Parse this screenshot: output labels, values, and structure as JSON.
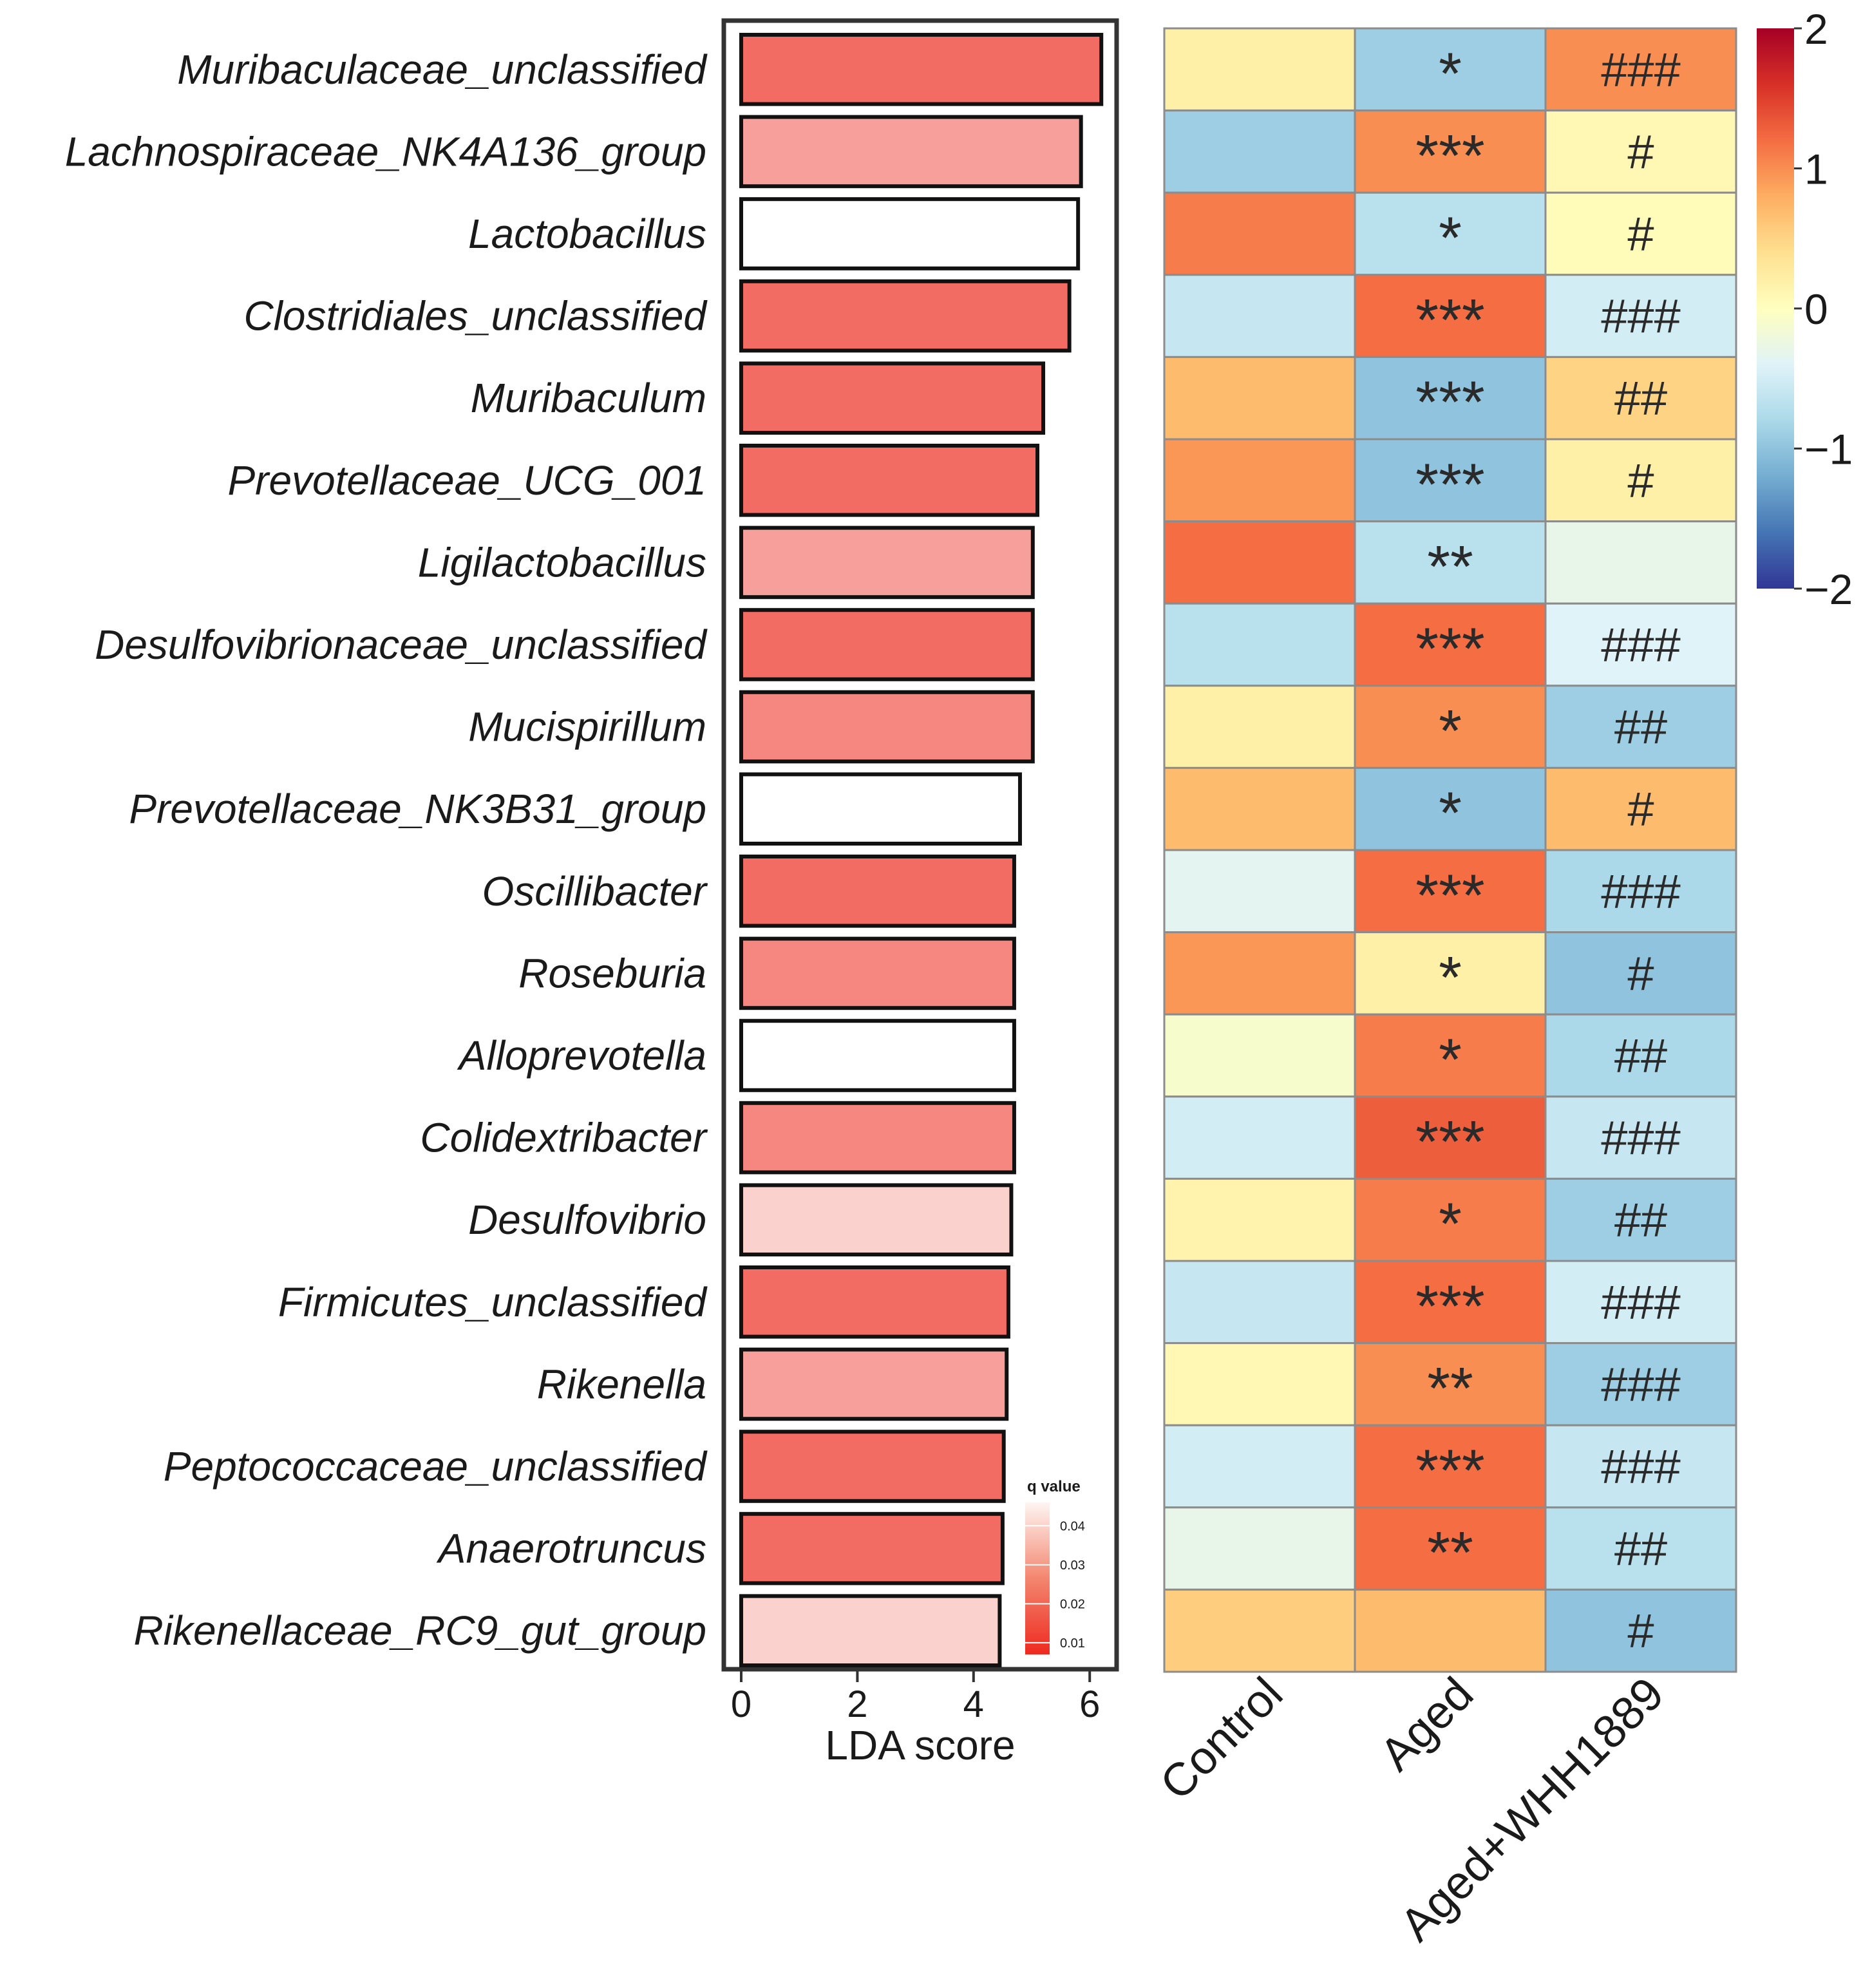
{
  "chart_data": [
    {
      "type": "bar",
      "orientation": "horizontal",
      "title": "",
      "xlabel": "LDA score",
      "ylabel": "",
      "xlim": [
        0,
        6.5
      ],
      "x_ticks": [
        "0",
        "2",
        "4",
        "6"
      ],
      "categories": [
        "Muribaculaceae_unclassified",
        "Lachnospiraceae_NK4A136_group",
        "Lactobacillus",
        "Clostridiales_unclassified",
        "Muribaculum",
        "Prevotellaceae_UCG_001",
        "Ligilactobacillus",
        "Desulfovibrionaceae_unclassified",
        "Mucispirillum",
        "Prevotellaceae_NK3B31_group",
        "Oscillibacter",
        "Roseburia",
        "Alloprevotella",
        "Colidextribacter",
        "Desulfovibrio",
        "Firmicutes_unclassified",
        "Rikenella",
        "Peptococcaceae_unclassified",
        "Anaerotruncus",
        "Rikenellaceae_RC9_gut_group"
      ],
      "values": [
        6.2,
        5.85,
        5.8,
        5.65,
        5.2,
        5.1,
        5.02,
        5.02,
        5.02,
        4.8,
        4.7,
        4.7,
        4.7,
        4.7,
        4.65,
        4.6,
        4.57,
        4.52,
        4.5,
        4.45
      ],
      "q_values": [
        0.02,
        0.03,
        0.05,
        0.02,
        0.02,
        0.02,
        0.03,
        0.02,
        0.025,
        0.05,
        0.02,
        0.025,
        0.05,
        0.025,
        0.04,
        0.02,
        0.03,
        0.02,
        0.02,
        0.04
      ],
      "legend": {
        "title": "q value",
        "ticks": [
          "0.04",
          "0.03",
          "0.02",
          "0.01"
        ],
        "position": "bottom-right inside plot"
      }
    },
    {
      "type": "heatmap",
      "title": "",
      "columns": [
        "Control",
        "Aged",
        "Aged+WHH1889"
      ],
      "rows": [
        "Muribaculaceae_unclassified",
        "Lachnospiraceae_NK4A136_group",
        "Lactobacillus",
        "Clostridiales_unclassified",
        "Muribaculum",
        "Prevotellaceae_UCG_001",
        "Ligilactobacillus",
        "Desulfovibrionaceae_unclassified",
        "Mucispirillum",
        "Prevotellaceae_NK3B31_group",
        "Oscillibacter",
        "Roseburia",
        "Alloprevotella",
        "Colidextribacter",
        "Desulfovibrio",
        "Firmicutes_unclassified",
        "Rikenella",
        "Peptococcaceae_unclassified",
        "Anaerotruncus",
        "Rikenellaceae_RC9_gut_group"
      ],
      "values": [
        [
          0.2,
          -0.9,
          1.0
        ],
        [
          -0.9,
          1.0,
          0.1
        ],
        [
          1.1,
          -0.7,
          0.05
        ],
        [
          -0.6,
          1.2,
          -0.5
        ],
        [
          0.7,
          -1.0,
          0.5
        ],
        [
          0.95,
          -1.0,
          0.2
        ],
        [
          1.2,
          -0.7,
          -0.3
        ],
        [
          -0.7,
          1.2,
          -0.4
        ],
        [
          0.2,
          1.0,
          -0.9
        ],
        [
          0.7,
          -1.0,
          0.7
        ],
        [
          -0.35,
          1.2,
          -0.8
        ],
        [
          0.95,
          0.2,
          -1.0
        ],
        [
          -0.1,
          1.1,
          -0.8
        ],
        [
          -0.5,
          1.3,
          -0.6
        ],
        [
          0.15,
          1.1,
          -0.9
        ],
        [
          -0.6,
          1.2,
          -0.5
        ],
        [
          0.1,
          1.0,
          -0.9
        ],
        [
          -0.5,
          1.2,
          -0.6
        ],
        [
          -0.3,
          1.2,
          -0.7
        ],
        [
          0.55,
          0.7,
          -1.0
        ]
      ],
      "aged_vs_control_marks": [
        "*",
        "***",
        "*",
        "***",
        "***",
        "***",
        "**",
        "***",
        "*",
        "*",
        "***",
        "*",
        "*",
        "***",
        "*",
        "***",
        "**",
        "***",
        "**",
        ""
      ],
      "treated_vs_aged_marks": [
        "###",
        "#",
        "#",
        "###",
        "##",
        "#",
        "",
        "###",
        "##",
        "#",
        "###",
        "#",
        "##",
        "###",
        "##",
        "###",
        "###",
        "###",
        "##",
        "#"
      ],
      "colorbar": {
        "range": [
          -2,
          2
        ],
        "ticks": [
          "2",
          "1",
          "0",
          "−1",
          "−2"
        ],
        "colors": [
          "#313695",
          "#4575b4",
          "#74add1",
          "#abd9e9",
          "#e0f3f8",
          "#ffffbf",
          "#fee090",
          "#fdae61",
          "#f46d43",
          "#d73027",
          "#a50026"
        ]
      }
    }
  ]
}
